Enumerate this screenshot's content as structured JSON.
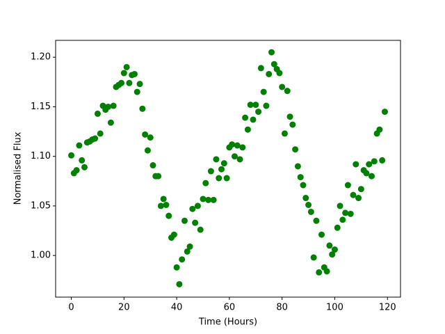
{
  "chart_data": {
    "type": "scatter",
    "xlabel": "Time (Hours)",
    "ylabel": "Normalised Flux",
    "xlim": [
      -5.95,
      124.95
    ],
    "ylim": [
      0.958,
      1.217
    ],
    "xticks": [
      0,
      20,
      40,
      60,
      80,
      100,
      120
    ],
    "yticks": [
      {
        "value": 1.0,
        "label": "1.00"
      },
      {
        "value": 1.05,
        "label": "1.05"
      },
      {
        "value": 1.1,
        "label": "1.10"
      },
      {
        "value": 1.15,
        "label": "1.15"
      },
      {
        "value": 1.2,
        "label": "1.20"
      }
    ],
    "grid": false,
    "series": [
      {
        "color": "#008000",
        "x": [
          0,
          1,
          2,
          3,
          4,
          5,
          6,
          7,
          8,
          9,
          10,
          11,
          12,
          13,
          14,
          15,
          16,
          17,
          18,
          19,
          20,
          21,
          22,
          23,
          24,
          25,
          26,
          27,
          28,
          29,
          30,
          31,
          32,
          33,
          34,
          35,
          36,
          37,
          38,
          39,
          40,
          41,
          42,
          43,
          44,
          45,
          46,
          47,
          48,
          49,
          50,
          51,
          52,
          53,
          54,
          55,
          56,
          57,
          58,
          59,
          60,
          61,
          62,
          63,
          64,
          65,
          66,
          67,
          68,
          69,
          70,
          71,
          72,
          73,
          74,
          75,
          76,
          77,
          78,
          79,
          80,
          81,
          82,
          83,
          84,
          85,
          86,
          87,
          88,
          89,
          90,
          91,
          92,
          93,
          94,
          95,
          96,
          97,
          98,
          99,
          100,
          101,
          102,
          103,
          104,
          105,
          106,
          107,
          108,
          109,
          110,
          111,
          112,
          113,
          114,
          115,
          116,
          117,
          118,
          119
        ],
        "values": [
          1.101,
          1.083,
          1.086,
          1.111,
          1.096,
          1.089,
          1.114,
          1.115,
          1.117,
          1.118,
          1.143,
          1.123,
          1.151,
          1.147,
          1.15,
          1.134,
          1.151,
          1.17,
          1.172,
          1.174,
          1.184,
          1.19,
          1.174,
          1.182,
          1.183,
          1.165,
          1.173,
          1.148,
          1.122,
          1.106,
          1.119,
          1.091,
          1.08,
          1.08,
          1.05,
          1.057,
          1.051,
          1.04,
          1.018,
          1.021,
          0.988,
          0.971,
          0.996,
          1.035,
          1.004,
          1.009,
          1.047,
          1.033,
          1.05,
          1.026,
          1.057,
          1.073,
          1.056,
          1.085,
          1.056,
          1.097,
          1.078,
          1.087,
          1.093,
          1.078,
          1.109,
          1.112,
          1.1,
          1.111,
          1.097,
          1.109,
          1.139,
          1.127,
          1.152,
          1.137,
          1.152,
          1.145,
          1.189,
          1.165,
          1.151,
          1.183,
          1.205,
          1.193,
          1.188,
          1.184,
          1.17,
          1.123,
          1.166,
          1.14,
          1.132,
          1.107,
          1.09,
          1.079,
          1.071,
          1.058,
          1.051,
          1.044,
          0.998,
          1.035,
          0.983,
          1.021,
          0.988,
          0.984,
          1.01,
          1.001,
          1.006,
          1.028,
          1.05,
          1.036,
          1.043,
          1.071,
          1.042,
          1.061,
          1.092,
          1.058,
          1.067,
          1.086,
          1.083,
          1.092,
          1.08,
          1.095,
          1.123,
          1.127,
          1.096,
          1.145
        ]
      }
    ]
  }
}
